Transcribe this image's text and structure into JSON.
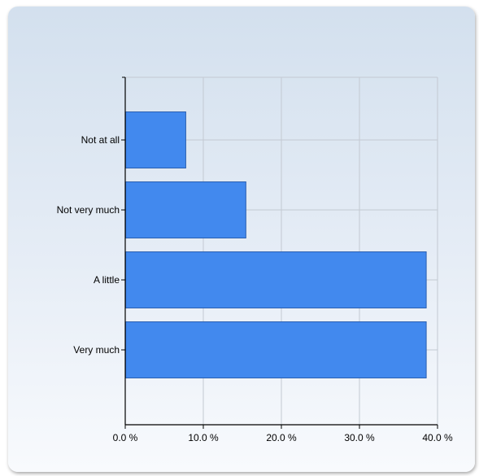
{
  "chart_data": {
    "type": "bar",
    "orientation": "horizontal",
    "categories": [
      "Not at all",
      "Not very much",
      "A little",
      "Very much"
    ],
    "values": [
      7.7,
      15.4,
      38.5,
      38.5
    ],
    "xlim": [
      0,
      40
    ],
    "x_ticks": [
      0,
      10,
      20,
      30,
      40
    ],
    "x_tick_labels": [
      "0.0 %",
      "10.0 %",
      "20.0 %",
      "30.0 %",
      "40.0 %"
    ],
    "title": "",
    "xlabel": "",
    "ylabel": "",
    "grid": true,
    "colors": {
      "bar_fill": "#4289ee",
      "bar_stroke": "#2a5fb0",
      "grid": "#c3c9d2",
      "axis": "#000000"
    }
  }
}
